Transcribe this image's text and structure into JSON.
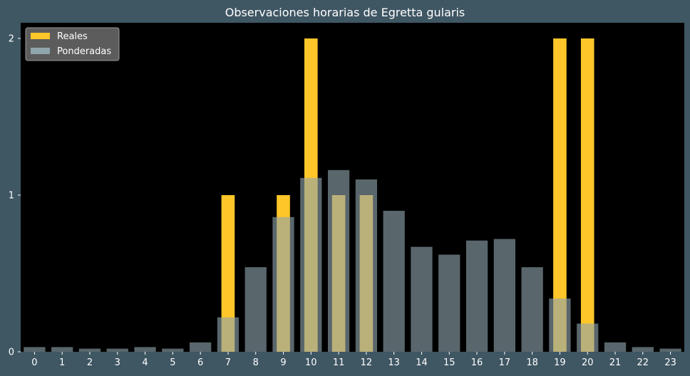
{
  "chart_data": {
    "type": "bar",
    "title": "Observaciones horarias de Egretta gularis",
    "xlabel": "",
    "ylabel": "",
    "categories": [
      "0",
      "1",
      "2",
      "3",
      "4",
      "5",
      "6",
      "7",
      "8",
      "9",
      "10",
      "11",
      "12",
      "13",
      "14",
      "15",
      "16",
      "17",
      "18",
      "19",
      "20",
      "21",
      "22",
      "23"
    ],
    "ylim": [
      0,
      2.1
    ],
    "yticks": [
      0,
      1,
      2
    ],
    "series": [
      {
        "name": "Reales",
        "color": "#ffc629",
        "values": [
          0,
          0,
          0,
          0,
          0,
          0,
          0,
          1,
          0,
          1,
          2,
          1,
          1,
          0,
          0,
          0,
          0,
          0,
          0,
          2,
          2,
          0,
          0,
          0
        ]
      },
      {
        "name": "Ponderadas",
        "color": "#8fa5ad",
        "values": [
          0.03,
          0.03,
          0.02,
          0.02,
          0.03,
          0.02,
          0.06,
          0.22,
          0.54,
          0.86,
          1.11,
          1.16,
          1.1,
          0.9,
          0.67,
          0.62,
          0.71,
          0.72,
          0.54,
          0.34,
          0.18,
          0.06,
          0.03,
          0.02
        ]
      }
    ],
    "legend_position": "top-left",
    "grid": false,
    "colors": {
      "figure_background": "#3f5663",
      "plot_background": "#000000",
      "text": "#ffffff"
    }
  }
}
